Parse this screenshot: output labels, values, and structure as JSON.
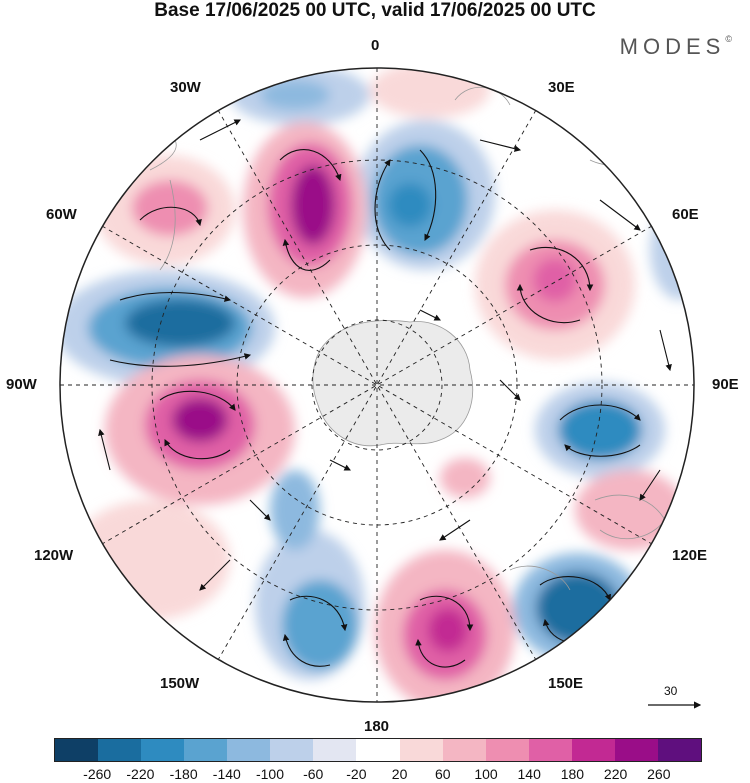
{
  "header": {
    "title": "Base 17/06/2025 00 UTC, valid 17/06/2025 00 UTC"
  },
  "brand": {
    "name": "MODES",
    "mark": "©"
  },
  "map": {
    "projection": "south-polar-stereographic",
    "longitude_labels": {
      "top": "0",
      "bottom": "180",
      "left": "90W",
      "right": "90E",
      "nw1": "30W",
      "nw2": "60W",
      "ne1": "30E",
      "ne2": "60E",
      "sw1": "120W",
      "sw2": "150W",
      "se1": "120E",
      "se2": "150E"
    },
    "vector_reference": "30",
    "grid": "dashed graticule"
  },
  "colorbar": {
    "colors": [
      "#0e3f66",
      "#1a6d9f",
      "#2e8bc0",
      "#5aa3d0",
      "#8db9df",
      "#bdd0ea",
      "#e3e6f2",
      "#ffffff",
      "#f9d9d9",
      "#f4b6c3",
      "#ee8eb1",
      "#e060a6",
      "#c22993",
      "#9a0d88",
      "#5f0f7e"
    ],
    "ticks": [
      "-260",
      "-220",
      "-180",
      "-140",
      "-100",
      "-60",
      "-20",
      "20",
      "60",
      "100",
      "140",
      "180",
      "220",
      "260"
    ]
  }
}
